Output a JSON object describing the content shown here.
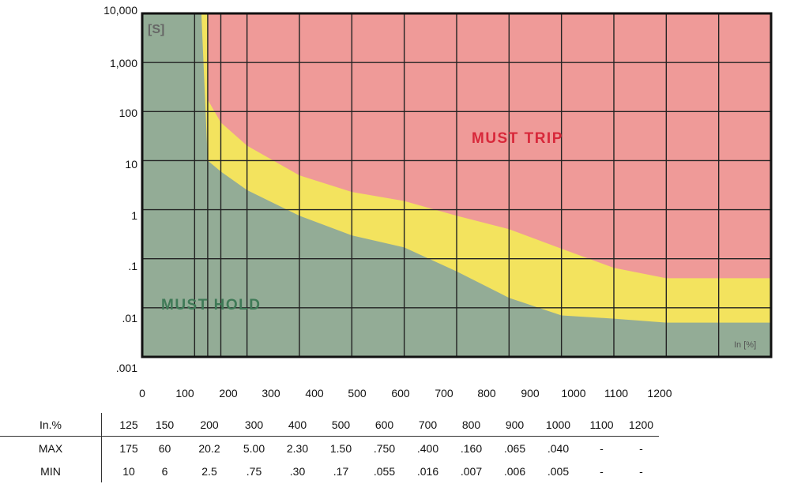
{
  "chart_data": {
    "type": "area",
    "y_unit_label": "[S]",
    "x_unit_label": "In [%]",
    "y_scale": "log",
    "ylim": [
      0.001,
      10000
    ],
    "xlim": [
      0,
      1200
    ],
    "y_tick_labels": [
      "10,000",
      "1,000",
      "100",
      "10",
      "1",
      ".1",
      ".01",
      ".001"
    ],
    "x_tick_labels": [
      "0",
      "100",
      "200",
      "300",
      "400",
      "500",
      "600",
      "700",
      "800",
      "900",
      "1000",
      "1100",
      "1200"
    ],
    "region_labels": {
      "upper": "MUST TRIP",
      "lower": "MUST HOLD"
    },
    "colors": {
      "trip": "#ef9a98",
      "hold": "#93ac96",
      "band": "#f3e35e",
      "grid": "#222222"
    },
    "series": [
      {
        "x": [
          125,
          150,
          200,
          300,
          400,
          500,
          600,
          700,
          800,
          900,
          1000,
          1100,
          1200
        ],
        "values": [
          175,
          60,
          20.2,
          5.0,
          2.3,
          1.5,
          0.75,
          0.4,
          0.16,
          0.065,
          0.04,
          0.04,
          0.04
        ]
      },
      {
        "x": [
          125,
          150,
          200,
          300,
          400,
          500,
          600,
          700,
          800,
          900,
          1000,
          1100,
          1200
        ],
        "values": [
          10,
          6,
          2.5,
          0.75,
          0.3,
          0.17,
          0.055,
          0.016,
          0.007,
          0.006,
          0.005,
          0.005,
          0.005
        ]
      }
    ]
  },
  "table": {
    "header_label": "In.%",
    "header_values": [
      "125",
      "150",
      "200",
      "300",
      "400",
      "500",
      "600",
      "700",
      "800",
      "900",
      "1000",
      "1100",
      "1200"
    ],
    "rows": [
      {
        "label": "MAX",
        "values": [
          "175",
          "60",
          "20.2",
          "5.00",
          "2.30",
          "1.50",
          ".750",
          ".400",
          ".160",
          ".065",
          ".040",
          "-",
          "-"
        ]
      },
      {
        "label": "MIN",
        "values": [
          "10",
          "6",
          "2.5",
          ".75",
          ".30",
          ".17",
          ".055",
          ".016",
          ".007",
          ".006",
          ".005",
          "-",
          "-"
        ]
      }
    ]
  }
}
